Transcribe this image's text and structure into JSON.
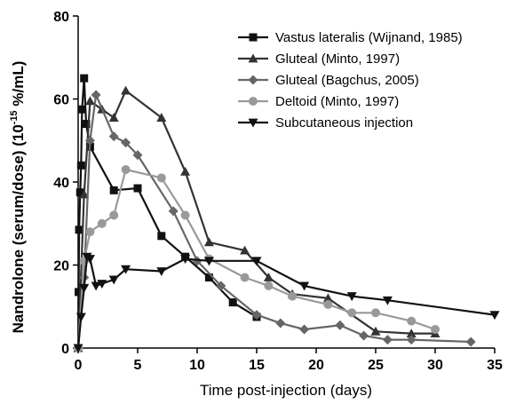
{
  "chart_data": {
    "type": "line",
    "xlabel": "Time post-injection (days)",
    "ylabel_main": "Nandrolone (serum/dose) (10",
    "ylabel_exp": "-15",
    "ylabel_tail": " %/mL)",
    "xlim": [
      0,
      35
    ],
    "ylim": [
      0,
      80
    ],
    "xticks": [
      0,
      5,
      10,
      15,
      20,
      25,
      30,
      35
    ],
    "yticks": [
      0,
      20,
      40,
      60,
      80
    ],
    "grid": false,
    "legend_position": "top-right",
    "series": [
      {
        "name": "Vastus lateralis (Wijnand, 1985)",
        "color": "#111111",
        "marker": "square",
        "x": [
          0,
          0.04,
          0.08,
          0.17,
          0.25,
          0.33,
          0.5,
          0.67,
          1,
          3,
          5,
          7,
          9,
          11,
          13,
          15
        ],
        "y": [
          0,
          13.5,
          28.5,
          37.5,
          44,
          57.5,
          65,
          54,
          48.5,
          38,
          38.5,
          27,
          22,
          17,
          11,
          7.5
        ]
      },
      {
        "name": "Gluteal (Minto, 1997)",
        "color": "#333333",
        "marker": "triangle-up",
        "x": [
          0,
          0.5,
          1,
          2,
          3,
          4,
          7,
          9,
          11,
          14,
          16,
          18,
          21,
          25,
          28,
          30
        ],
        "y": [
          0,
          37,
          59.5,
          57.5,
          55.5,
          62,
          55.5,
          42.5,
          25.5,
          23.5,
          17,
          13,
          12,
          4,
          3.5,
          3.5
        ]
      },
      {
        "name": "Gluteal (Bagchus, 2005)",
        "color": "#666666",
        "marker": "diamond",
        "x": [
          0,
          0.5,
          1,
          1.5,
          3,
          4,
          5,
          8,
          10,
          12,
          15,
          17,
          19,
          22,
          24,
          26,
          28,
          33
        ],
        "y": [
          0,
          17,
          50,
          61,
          51,
          49.5,
          46.5,
          33,
          21,
          15,
          8,
          6,
          4.5,
          5.5,
          3,
          2,
          2,
          1.5
        ]
      },
      {
        "name": "Deltoid (Minto, 1997)",
        "color": "#999999",
        "marker": "circle",
        "x": [
          0,
          0.5,
          1,
          2,
          3,
          4,
          7,
          9,
          11,
          14,
          16,
          18,
          21,
          23,
          25,
          28,
          30
        ],
        "y": [
          0,
          21,
          28,
          30,
          32,
          43,
          41,
          32,
          21.5,
          17,
          15,
          12.5,
          10.5,
          8.5,
          8.5,
          6.5,
          4.5
        ]
      },
      {
        "name": "Subcutaneous injection",
        "color": "#111111",
        "marker": "triangle-down",
        "x": [
          0,
          0.25,
          0.5,
          0.75,
          1,
          1.5,
          2,
          3,
          4,
          7,
          9,
          11,
          15,
          19,
          23,
          26,
          35
        ],
        "y": [
          0,
          7.5,
          14.5,
          22,
          21.5,
          15,
          15.5,
          16.5,
          19,
          18.5,
          21.5,
          21,
          21,
          15,
          12.5,
          11.5,
          8
        ]
      }
    ]
  }
}
